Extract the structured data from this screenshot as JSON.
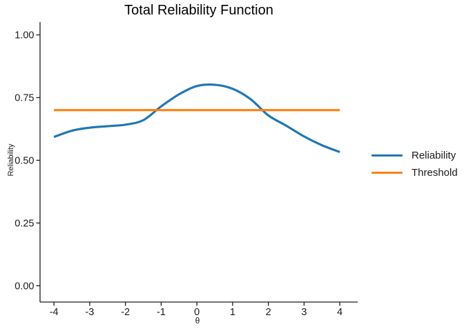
{
  "title": "Total Reliability Function",
  "axes": {
    "x_label": "θ",
    "y_label": "Reliability"
  },
  "legend": {
    "items": [
      {
        "label": "Reliability",
        "color": "#1F77B4"
      },
      {
        "label": "Threshold",
        "color": "#FF7F0E"
      }
    ]
  },
  "chart_data": {
    "type": "line",
    "title": "Total Reliability Function",
    "xlabel": "θ",
    "ylabel": "Reliability",
    "xlim": [
      -4.39,
      4.5
    ],
    "ylim": [
      -0.065,
      1.051
    ],
    "xticks": [
      -4,
      -3,
      -2,
      -1,
      0,
      1,
      2,
      3,
      4
    ],
    "yticks": [
      {
        "value": 0.0,
        "label": "0.00"
      },
      {
        "value": 0.25,
        "label": "0.25"
      },
      {
        "value": 0.5,
        "label": "0.50"
      },
      {
        "value": 0.75,
        "label": "0.75"
      },
      {
        "value": 1.0,
        "label": "1.00"
      }
    ],
    "grid": false,
    "legend_position": "right",
    "series": [
      {
        "name": "Reliability",
        "color": "#1F77B4",
        "stroke_width": 3.2,
        "smooth": true,
        "x": [
          -4,
          -3.5,
          -3,
          -2.5,
          -2,
          -1.5,
          -1,
          -0.5,
          0,
          0.5,
          1,
          1.5,
          2,
          2.5,
          3,
          3.5,
          4
        ],
        "y": [
          0.593,
          0.618,
          0.63,
          0.636,
          0.642,
          0.66,
          0.715,
          0.763,
          0.796,
          0.801,
          0.785,
          0.744,
          0.679,
          0.638,
          0.595,
          0.56,
          0.533
        ]
      },
      {
        "name": "Threshold",
        "color": "#FF7F0E",
        "stroke_width": 3.2,
        "smooth": false,
        "x": [
          -4,
          4
        ],
        "y": [
          0.7,
          0.7
        ]
      }
    ]
  }
}
